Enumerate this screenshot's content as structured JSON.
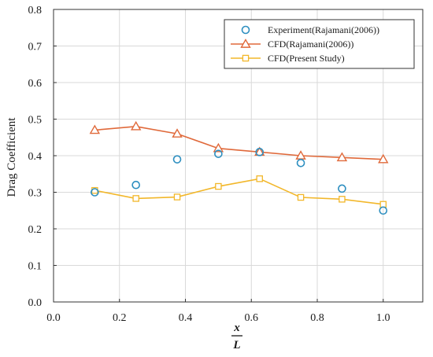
{
  "chart_data": {
    "type": "line",
    "title": "",
    "xlabel_top": "x",
    "xlabel_bottom": "L",
    "ylabel": "Drag Coefficient",
    "xlim": [
      0.0,
      1.12
    ],
    "ylim": [
      0.0,
      0.8
    ],
    "xticks": [
      0.0,
      0.2,
      0.4,
      0.6,
      0.8,
      1.0
    ],
    "yticks": [
      0.0,
      0.1,
      0.2,
      0.3,
      0.4,
      0.5,
      0.6,
      0.7,
      0.8
    ],
    "xtick_labels": [
      "0.0",
      "0.2",
      "0.4",
      "0.6",
      "0.8",
      "1.0"
    ],
    "ytick_labels": [
      "0.0",
      "0.1",
      "0.2",
      "0.3",
      "0.4",
      "0.5",
      "0.6",
      "0.7",
      "0.8"
    ],
    "grid": true,
    "legend_position": "top-right",
    "series": [
      {
        "name": "Experiment(Rajamani(2006))",
        "style": "markers",
        "marker": "circle",
        "color": "#2e8fc0",
        "x": [
          0.125,
          0.25,
          0.375,
          0.5,
          0.625,
          0.75,
          0.875,
          1.0
        ],
        "y": [
          0.3,
          0.32,
          0.39,
          0.405,
          0.41,
          0.38,
          0.31,
          0.25
        ]
      },
      {
        "name": "CFD(Rajamani(2006))",
        "style": "line+markers",
        "marker": "triangle",
        "color": "#e0693a",
        "x": [
          0.125,
          0.25,
          0.375,
          0.5,
          0.625,
          0.75,
          0.875,
          1.0
        ],
        "y": [
          0.47,
          0.48,
          0.46,
          0.42,
          0.41,
          0.4,
          0.395,
          0.39
        ]
      },
      {
        "name": "CFD(Present Study)",
        "style": "line+markers",
        "marker": "square",
        "color": "#f2b72a",
        "x": [
          0.125,
          0.25,
          0.375,
          0.5,
          0.625,
          0.75,
          0.875,
          1.0
        ],
        "y": [
          0.305,
          0.283,
          0.287,
          0.316,
          0.337,
          0.286,
          0.281,
          0.267
        ]
      }
    ]
  }
}
